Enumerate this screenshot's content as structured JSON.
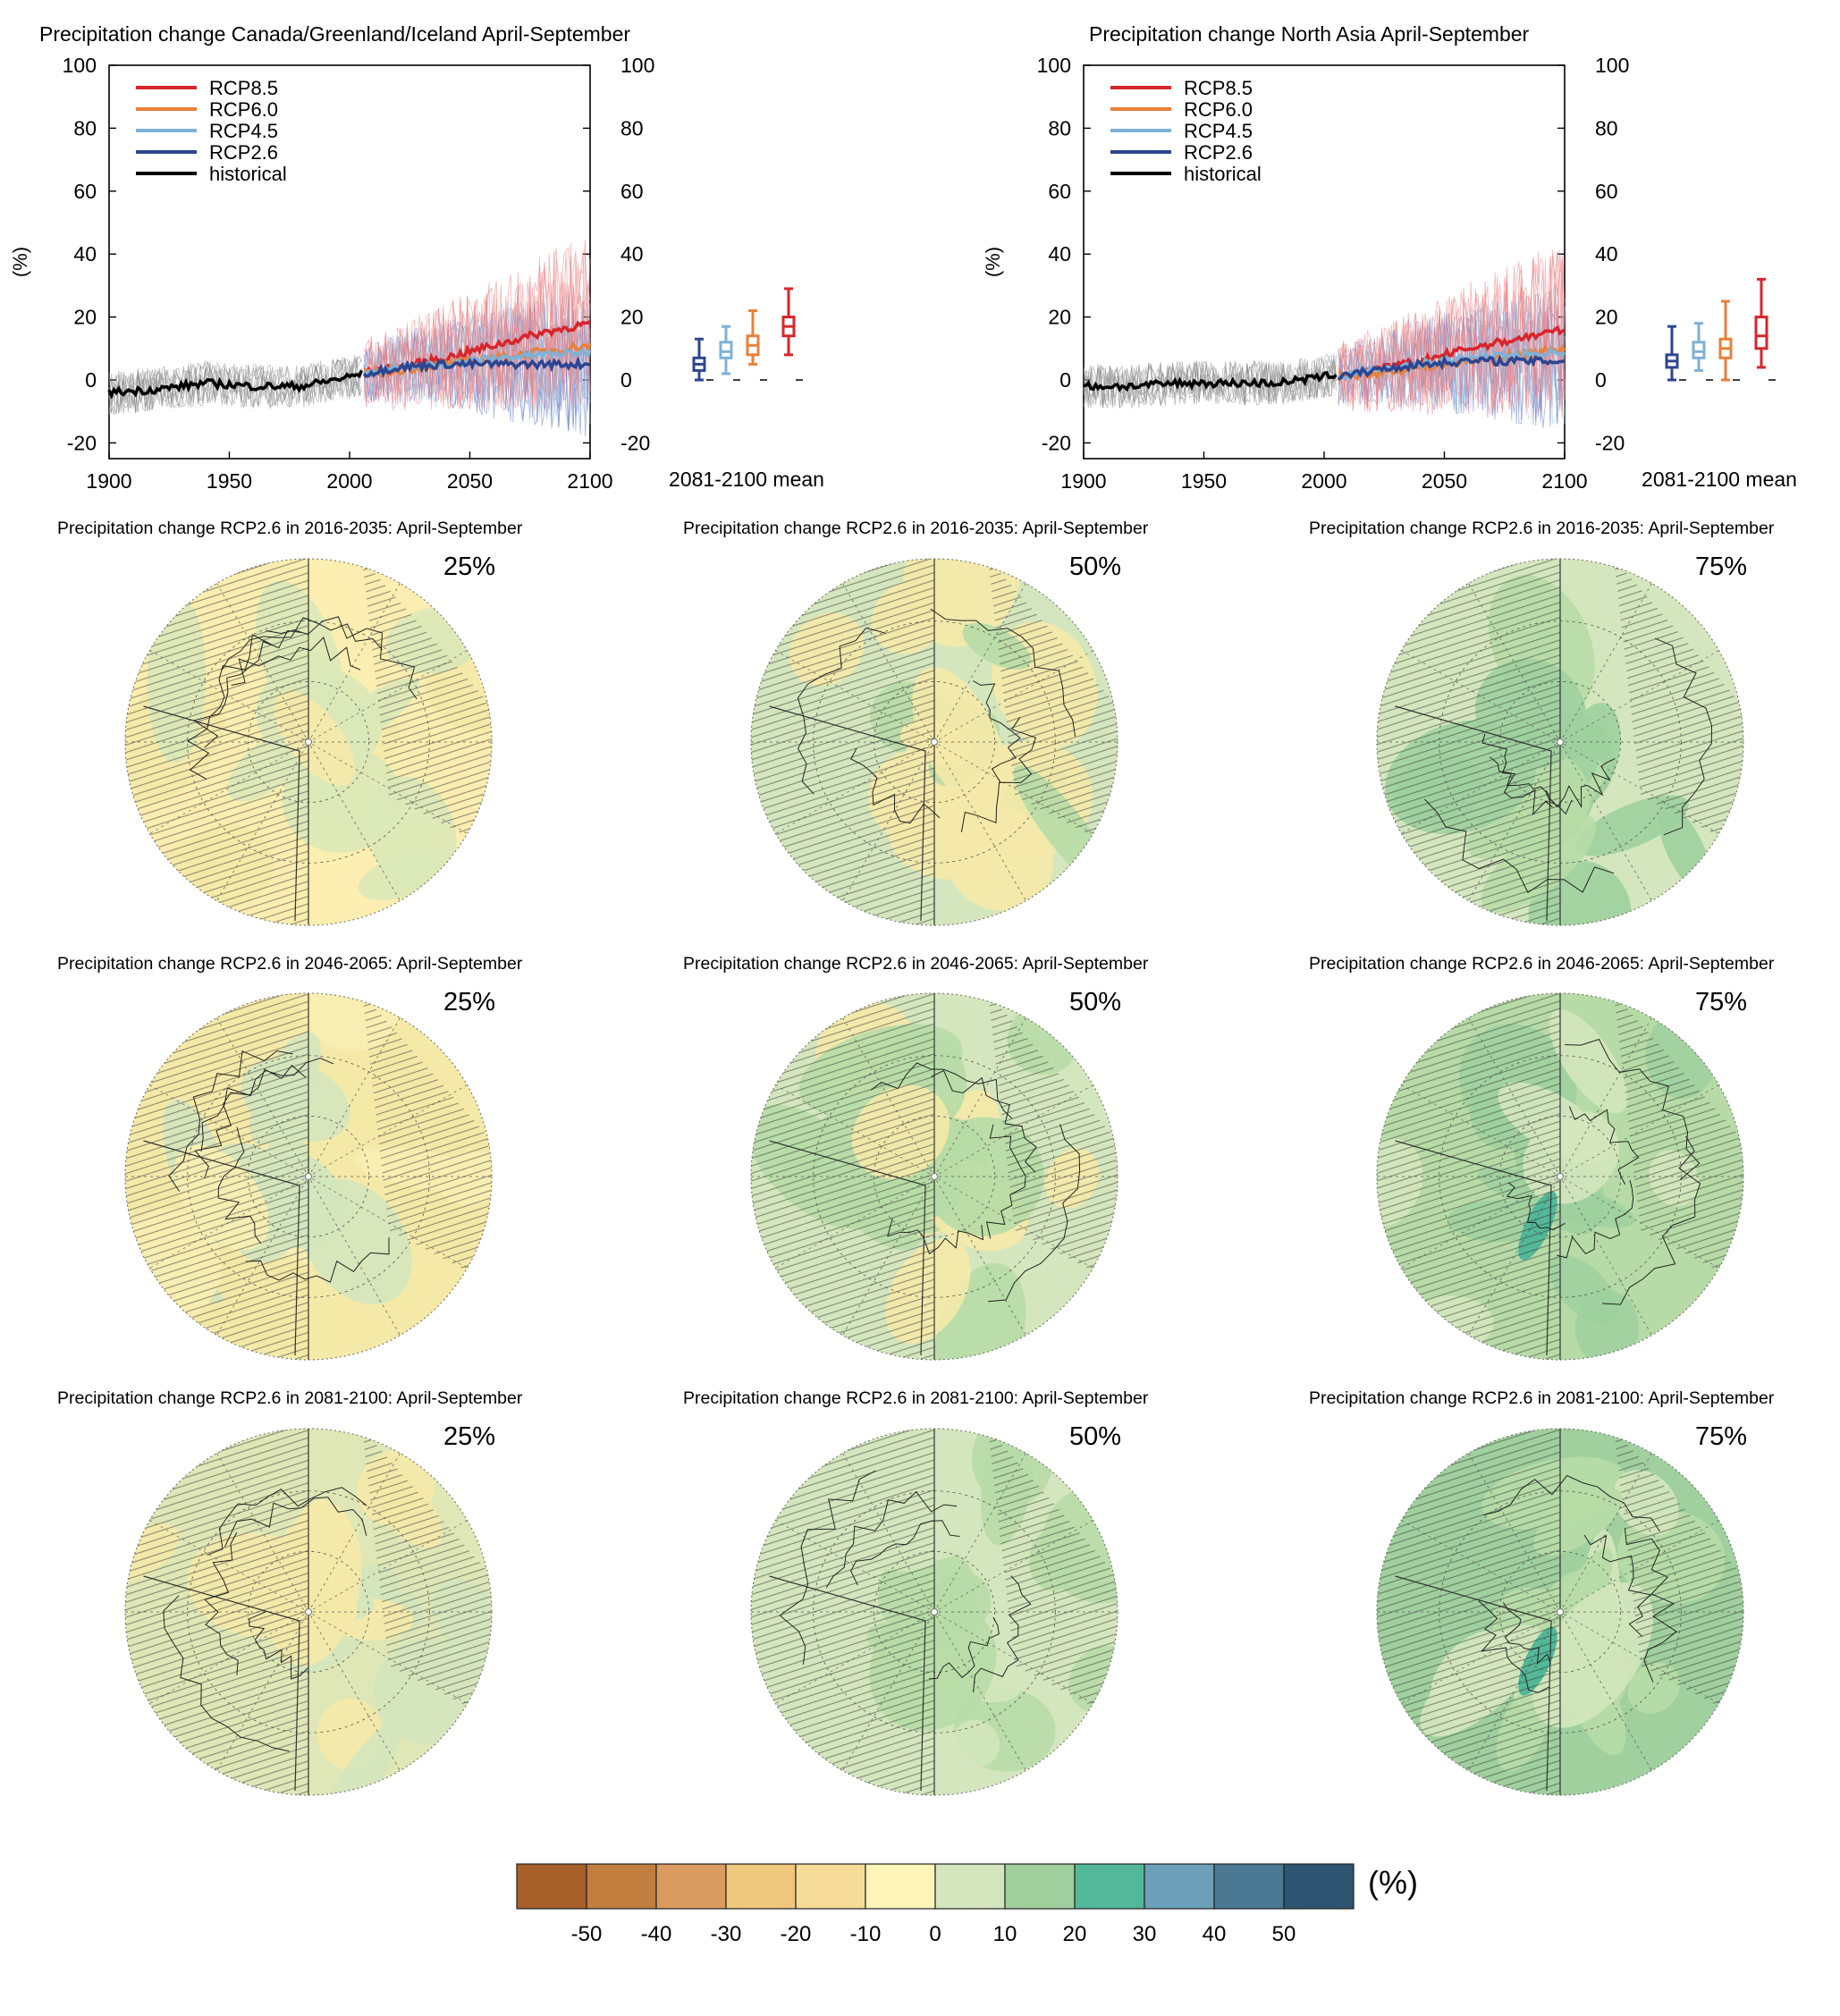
{
  "chart_data": [
    {
      "type": "line",
      "title": "Precipitation change Canada/Greenland/Iceland April-September",
      "ylabel": "(%)",
      "xlim": [
        1900,
        2100
      ],
      "ylim": [
        -25,
        100
      ],
      "xticks": [
        "1900",
        "1950",
        "2000",
        "2050",
        "2100"
      ],
      "yticks": [
        "100",
        "80",
        "60",
        "40",
        "20",
        "0",
        "-20"
      ],
      "legend_position": "top-left",
      "series": [
        {
          "name": "RCP8.5",
          "color": "#d7262b",
          "x": [
            2006,
            2020,
            2040,
            2060,
            2080,
            2100
          ],
          "values": [
            2,
            4,
            7,
            11,
            15,
            18
          ]
        },
        {
          "name": "RCP6.0",
          "color": "#e9803a",
          "x": [
            2006,
            2020,
            2040,
            2060,
            2080,
            2100
          ],
          "values": [
            2,
            3,
            5,
            7,
            9,
            11
          ]
        },
        {
          "name": "RCP4.5",
          "color": "#7fb1d8",
          "x": [
            2006,
            2020,
            2040,
            2060,
            2080,
            2100
          ],
          "values": [
            2,
            4,
            5,
            7,
            8,
            9
          ]
        },
        {
          "name": "RCP2.6",
          "color": "#2d4591",
          "x": [
            2006,
            2020,
            2040,
            2060,
            2080,
            2100
          ],
          "values": [
            2,
            4,
            5,
            5,
            5,
            5
          ]
        },
        {
          "name": "historical",
          "color": "#000000",
          "x": [
            1900,
            1920,
            1940,
            1960,
            1980,
            2000,
            2005
          ],
          "values": [
            -4,
            -3,
            -1,
            -2,
            -2,
            1,
            2
          ]
        }
      ],
      "boxplots": {
        "label": "2081-2100 mean",
        "items": [
          {
            "name": "RCP2.6",
            "color": "#2d4591",
            "min": 0,
            "q1": 3,
            "median": 5,
            "q3": 7,
            "max": 13
          },
          {
            "name": "RCP4.5",
            "color": "#7fb1d8",
            "min": 2,
            "q1": 7,
            "median": 9,
            "q3": 12,
            "max": 17
          },
          {
            "name": "RCP6.0",
            "color": "#e9803a",
            "min": 5,
            "q1": 8,
            "median": 11,
            "q3": 14,
            "max": 22
          },
          {
            "name": "RCP8.5",
            "color": "#d7262b",
            "min": 8,
            "q1": 14,
            "median": 17,
            "q3": 20,
            "max": 29
          }
        ]
      }
    },
    {
      "type": "line",
      "title": "Precipitation change North Asia April-September",
      "ylabel": "(%)",
      "xlim": [
        1900,
        2100
      ],
      "ylim": [
        -25,
        100
      ],
      "xticks": [
        "1900",
        "1950",
        "2000",
        "2050",
        "2100"
      ],
      "yticks": [
        "100",
        "80",
        "60",
        "40",
        "20",
        "0",
        "-20"
      ],
      "legend_position": "top-left",
      "series": [
        {
          "name": "RCP8.5",
          "color": "#d7262b",
          "x": [
            2006,
            2020,
            2040,
            2060,
            2080,
            2100
          ],
          "values": [
            1,
            3,
            6,
            10,
            13,
            16
          ]
        },
        {
          "name": "RCP6.0",
          "color": "#e9803a",
          "x": [
            2006,
            2020,
            2040,
            2060,
            2080,
            2100
          ],
          "values": [
            1,
            2,
            4,
            6,
            8,
            10
          ]
        },
        {
          "name": "RCP4.5",
          "color": "#7fb1d8",
          "x": [
            2006,
            2020,
            2040,
            2060,
            2080,
            2100
          ],
          "values": [
            1,
            3,
            5,
            7,
            8,
            9
          ]
        },
        {
          "name": "RCP2.6",
          "color": "#2d4591",
          "x": [
            2006,
            2020,
            2040,
            2060,
            2080,
            2100
          ],
          "values": [
            1,
            3,
            5,
            6,
            6,
            6
          ]
        },
        {
          "name": "historical",
          "color": "#000000",
          "x": [
            1900,
            1920,
            1940,
            1960,
            1980,
            2000,
            2005
          ],
          "values": [
            -2,
            -2,
            -1,
            -1,
            -1,
            1,
            2
          ]
        }
      ],
      "boxplots": {
        "label": "2081-2100 mean",
        "items": [
          {
            "name": "RCP2.6",
            "color": "#2d4591",
            "min": 0,
            "q1": 4,
            "median": 6,
            "q3": 8,
            "max": 17
          },
          {
            "name": "RCP4.5",
            "color": "#7fb1d8",
            "min": 3,
            "q1": 7,
            "median": 9,
            "q3": 12,
            "max": 18
          },
          {
            "name": "RCP6.0",
            "color": "#e9803a",
            "min": 0,
            "q1": 7,
            "median": 10,
            "q3": 13,
            "max": 25
          },
          {
            "name": "RCP8.5",
            "color": "#d7262b",
            "min": 4,
            "q1": 10,
            "median": 14,
            "q3": 20,
            "max": 32
          }
        ]
      }
    },
    {
      "type": "heatmap",
      "maps": [
        {
          "title": "Precipitation change RCP2.6 in 2016-2035: April-September",
          "percentile": "25%"
        },
        {
          "title": "Precipitation change RCP2.6 in 2016-2035: April-September",
          "percentile": "50%"
        },
        {
          "title": "Precipitation change RCP2.6 in 2016-2035: April-September",
          "percentile": "75%"
        },
        {
          "title": "Precipitation change RCP2.6 in 2046-2065: April-September",
          "percentile": "25%"
        },
        {
          "title": "Precipitation change RCP2.6 in 2046-2065: April-September",
          "percentile": "50%"
        },
        {
          "title": "Precipitation change RCP2.6 in 2046-2065: April-September",
          "percentile": "75%"
        },
        {
          "title": "Precipitation change RCP2.6 in 2081-2100: April-September",
          "percentile": "25%"
        },
        {
          "title": "Precipitation change RCP2.6 in 2081-2100: April-September",
          "percentile": "50%"
        },
        {
          "title": "Precipitation change RCP2.6 in 2081-2100: April-September",
          "percentile": "75%"
        }
      ],
      "colorbar": {
        "unit": "(%)",
        "ticks": [
          "-50",
          "-40",
          "-30",
          "-20",
          "-10",
          "0",
          "10",
          "20",
          "30",
          "40",
          "50"
        ],
        "colors": [
          "#a8602b",
          "#c27e3f",
          "#d99b5f",
          "#efc77d",
          "#f6dc98",
          "#fff5b8",
          "#d4e6bd",
          "#9fd09e",
          "#52b898",
          "#6c9fb8",
          "#4b7892",
          "#2d5470"
        ]
      }
    }
  ]
}
